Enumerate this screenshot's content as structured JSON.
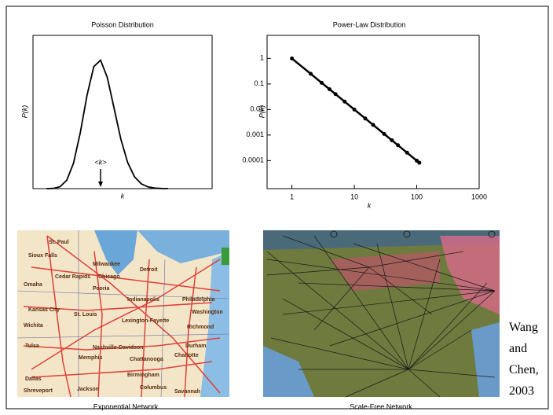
{
  "chart_data": [
    {
      "type": "line",
      "title": "Poisson Distribution",
      "x_label": "k",
      "y_label": "P(k)",
      "x": [
        4,
        6,
        8,
        10,
        12,
        14,
        16,
        18,
        20,
        22,
        24,
        26,
        28,
        30,
        32,
        34,
        36,
        38,
        40
      ],
      "values": [
        1.37e-05,
        0.000183,
        0.00131,
        0.00582,
        0.0176,
        0.0387,
        0.0646,
        0.0844,
        0.0888,
        0.0769,
        0.0557,
        0.0343,
        0.0181,
        0.00834,
        0.00336,
        0.0012,
        0.000381,
        0.00011,
        3e-05
      ],
      "xlim": [
        0,
        53
      ],
      "ylim": [
        0,
        0.106
      ],
      "color": "#000000",
      "annotations": [
        {
          "text": "<k>",
          "x": 20
        }
      ]
    },
    {
      "type": "line",
      "title": "Power-Law Distribution",
      "x_label": "k",
      "y_label": "P(k)",
      "x": [
        1,
        2,
        3,
        4,
        5,
        7,
        10,
        15,
        20,
        30,
        40,
        50,
        70,
        100,
        110
      ],
      "values": [
        1,
        0.25,
        0.111,
        0.0625,
        0.04,
        0.0204,
        0.01,
        0.00444,
        0.0025,
        0.00111,
        0.000625,
        0.0004,
        0.000204,
        0.0001,
        8.26e-05
      ],
      "xlim": [
        0.4,
        1000
      ],
      "ylim": [
        8e-06,
        8
      ],
      "log_x": true,
      "log_y": true,
      "xticks": [
        1,
        10,
        100,
        1000
      ],
      "yticks": [
        1,
        0.1,
        0.01,
        0.001,
        0.0001
      ],
      "color": "#000000",
      "markers": true
    }
  ],
  "figures": [
    {
      "caption": "Exponential Network",
      "labels": [
        "St. Paul",
        "Sioux Falls",
        "Milwaukee",
        "Detroit",
        "Omaha",
        "Cedar Rapids",
        "Chicago",
        "Peoria",
        "Indianapolis",
        "Philadelphia",
        "Kansas City",
        "St. Louis",
        "Lexington-Fayette",
        "Washington",
        "Richmond",
        "Wichita",
        "Tulsa",
        "Nashville-Davidson",
        "Durham",
        "Memphis",
        "Chattanooga",
        "Charlotte",
        "Birmingham",
        "Columbus",
        "Dallas",
        "Shreveport",
        "Jackson",
        "Savannah"
      ]
    },
    {
      "caption": "Scale-Free Network"
    }
  ],
  "citation": "Wang and Chen, 2003"
}
